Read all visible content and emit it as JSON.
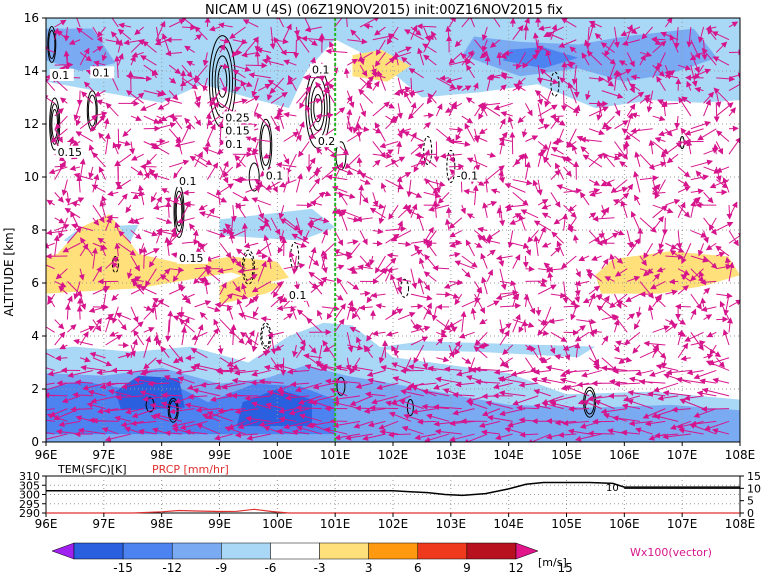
{
  "title": "NICAM U (4S) (06Z19NOV2015) init:00Z16NOV2015 fix",
  "chart_data": [
    {
      "type": "heatmap",
      "name": "main",
      "ylabel": "ALTITUDE [km]",
      "xlim": [
        96,
        108
      ],
      "ylim": [
        0,
        16
      ],
      "x_ticks": [
        "96E",
        "97E",
        "98E",
        "99E",
        "100E",
        "101E",
        "102E",
        "103E",
        "104E",
        "105E",
        "106E",
        "107E",
        "108E"
      ],
      "y_ticks": [
        "0",
        "2",
        "4",
        "6",
        "8",
        "10",
        "12",
        "14",
        "16"
      ],
      "marker_line_x": 101.0,
      "contour_labels": [
        {
          "text": "0.1",
          "x": 96.1,
          "y": 13.7
        },
        {
          "text": "0.1",
          "x": 96.8,
          "y": 13.8
        },
        {
          "text": "0.15",
          "x": 96.2,
          "y": 10.8
        },
        {
          "text": "0.25",
          "x": 99.1,
          "y": 12.1
        },
        {
          "text": "0.15",
          "x": 99.1,
          "y": 11.6
        },
        {
          "text": "0.1",
          "x": 99.1,
          "y": 11.1
        },
        {
          "text": "0.1",
          "x": 99.8,
          "y": 9.9
        },
        {
          "text": "0.1",
          "x": 98.3,
          "y": 9.7
        },
        {
          "text": "0.15",
          "x": 98.3,
          "y": 6.8
        },
        {
          "text": "0.1",
          "x": 100.2,
          "y": 5.4
        },
        {
          "text": "0.1",
          "x": 100.6,
          "y": 13.9
        },
        {
          "text": "0.2",
          "x": 100.7,
          "y": 11.2
        },
        {
          "text": "-0.1",
          "x": 103.1,
          "y": 9.9
        }
      ],
      "colorbar": {
        "levels": [
          "-15",
          "-12",
          "-9",
          "-6",
          "-3",
          "3",
          "6",
          "9",
          "12",
          "15"
        ],
        "unit": "[m/s]",
        "colors": [
          "#a020f0",
          "#2a5fe0",
          "#4c83f0",
          "#7aaaf2",
          "#a8d8f5",
          "#ffffff",
          "#ffe07a",
          "#ff9a10",
          "#f03a1e",
          "#b8101e",
          "#e0168a"
        ]
      },
      "vector_label": "Wx100(vector)"
    },
    {
      "type": "line",
      "name": "surface",
      "left_label": "TEM(SFC)[K]",
      "right_label": "PRCP [mm/hr]",
      "left_ticks": [
        "310",
        "305",
        "300",
        "295",
        "290"
      ],
      "right_ticks": [
        "15",
        "10",
        "5",
        "0"
      ],
      "left_range": [
        290,
        310
      ],
      "right_range": [
        0,
        15
      ],
      "contour_label": "10",
      "series": [
        {
          "axis": "left",
          "x": [
            96,
            96.5,
            97,
            97.5,
            98,
            98.5,
            99,
            99.5,
            100,
            100.5,
            101,
            101.5,
            102,
            102.3,
            102.6,
            102.9,
            103.2,
            103.6,
            104,
            104.3,
            104.6,
            105,
            105.4,
            105.8,
            106,
            106.5,
            107,
            107.5,
            108
          ],
          "y": [
            302,
            302,
            302,
            302,
            302,
            302,
            302,
            302,
            302,
            302,
            302,
            302,
            302,
            301.5,
            301,
            300,
            299.5,
            300.5,
            303,
            305.5,
            306.5,
            306.5,
            306.5,
            306,
            304,
            304,
            304,
            304,
            304
          ]
        },
        {
          "axis": "right",
          "x": [
            96,
            97.5,
            98,
            98.3,
            98.6,
            99,
            99.3,
            99.6,
            99.9,
            100.2,
            101,
            108
          ],
          "y": [
            0,
            0,
            0.5,
            1.0,
            0.8,
            0.6,
            0.7,
            1.5,
            0.6,
            0,
            0,
            0
          ]
        }
      ]
    }
  ]
}
